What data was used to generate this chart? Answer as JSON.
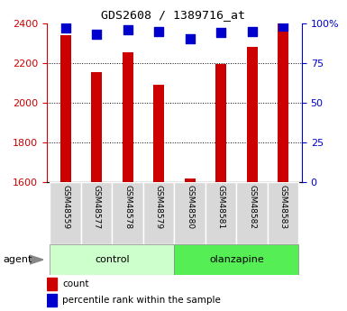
{
  "title": "GDS2608 / 1389716_at",
  "samples": [
    "GSM48559",
    "GSM48577",
    "GSM48578",
    "GSM48579",
    "GSM48580",
    "GSM48581",
    "GSM48582",
    "GSM48583"
  ],
  "counts": [
    2340,
    2155,
    2255,
    2090,
    1618,
    2195,
    2280,
    2400
  ],
  "percentiles": [
    97,
    93,
    96,
    95,
    90,
    94,
    95,
    98
  ],
  "ylim_left": [
    1600,
    2400
  ],
  "ylim_right": [
    0,
    100
  ],
  "yticks_left": [
    1600,
    1800,
    2000,
    2200,
    2400
  ],
  "yticks_right": [
    0,
    25,
    50,
    75,
    100
  ],
  "yticklabels_right": [
    "0",
    "25",
    "50",
    "75",
    "100%"
  ],
  "bar_color": "#cc0000",
  "dot_color": "#0000cc",
  "control_color": "#ccffcc",
  "olanzapine_color": "#55ee55",
  "left_tick_color": "#cc0000",
  "right_tick_color": "#0000cc",
  "bar_width": 0.35,
  "agent_label": "agent",
  "legend_count_label": "count",
  "legend_percentile_label": "percentile rank within the sample",
  "dot_size": 45,
  "grid_color": "#000000",
  "grid_lines": [
    1800,
    2000,
    2200
  ],
  "background_color": "#ffffff"
}
